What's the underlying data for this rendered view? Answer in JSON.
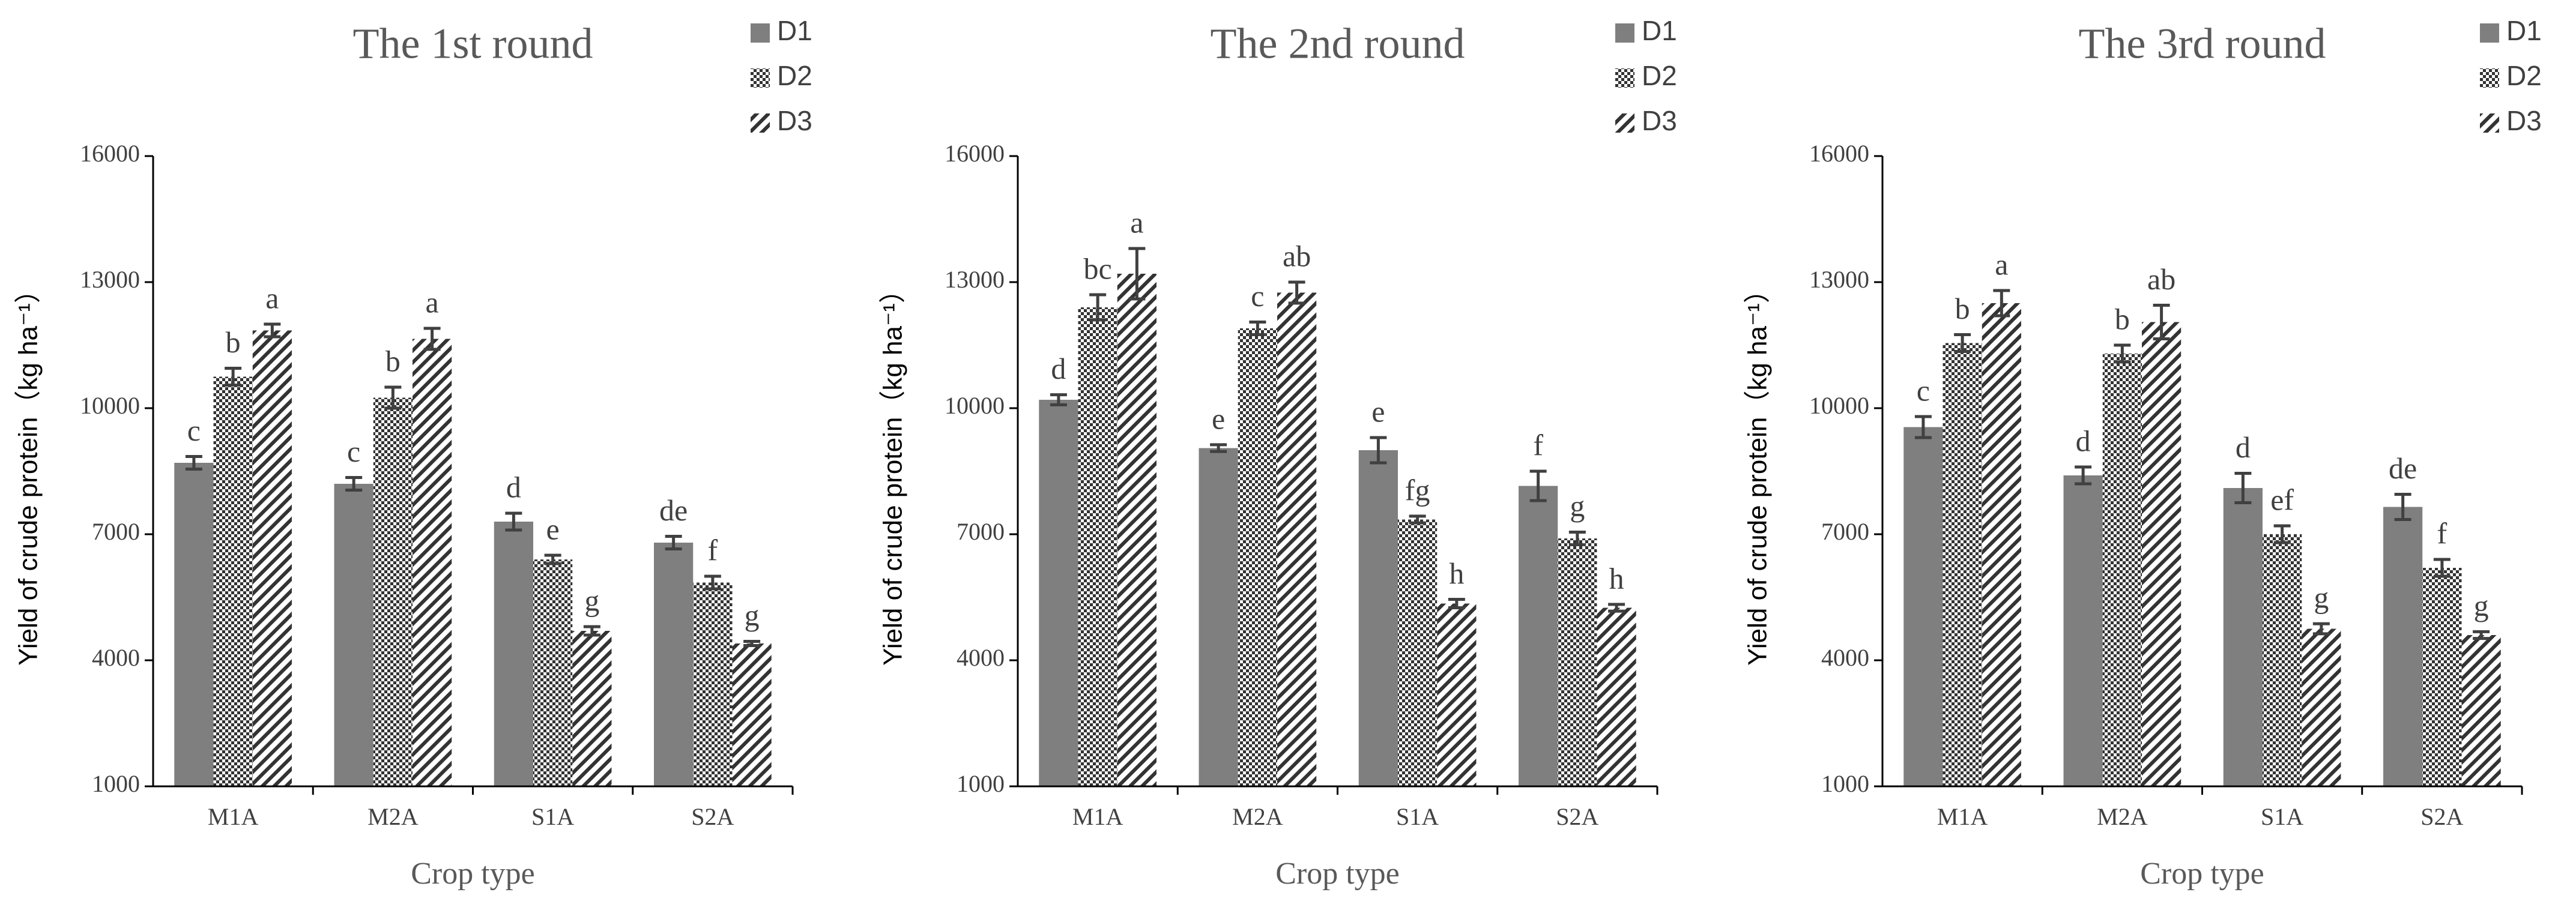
{
  "chart_data": [
    {
      "type": "bar",
      "title": "The 1st round",
      "xlabel": "Crop type",
      "ylabel": "Yield of crude protein（kg ha⁻¹）",
      "categories": [
        "M1A",
        "M2A",
        "S1A",
        "S2A"
      ],
      "ylim": [
        1000,
        16000
      ],
      "yticks": [
        1000,
        4000,
        7000,
        10000,
        13000,
        16000
      ],
      "series": [
        {
          "name": "D1",
          "color": "#7f7f7f",
          "pattern": "solid",
          "values": [
            8700,
            8200,
            7300,
            6800
          ],
          "errors": [
            150,
            150,
            200,
            150
          ],
          "annotations": [
            "c",
            "c",
            "d",
            "de"
          ]
        },
        {
          "name": "D2",
          "color": "#333333",
          "pattern": "checker",
          "values": [
            10750,
            10250,
            6400,
            5850
          ],
          "errors": [
            200,
            250,
            100,
            150
          ],
          "annotations": [
            "b",
            "b",
            "e",
            "f"
          ]
        },
        {
          "name": "D3",
          "color": "#333333",
          "pattern": "diagonal",
          "values": [
            11850,
            11650,
            4700,
            4400
          ],
          "errors": [
            150,
            250,
            100,
            50
          ],
          "annotations": [
            "a",
            "a",
            "g",
            "g"
          ]
        }
      ]
    },
    {
      "type": "bar",
      "title": "The 2nd round",
      "xlabel": "Crop type",
      "ylabel": "Yield of crude protein（kg ha⁻¹）",
      "categories": [
        "M1A",
        "M2A",
        "S1A",
        "S2A"
      ],
      "ylim": [
        1000,
        16000
      ],
      "yticks": [
        1000,
        4000,
        7000,
        10000,
        13000,
        16000
      ],
      "series": [
        {
          "name": "D1",
          "color": "#7f7f7f",
          "pattern": "solid",
          "values": [
            10200,
            9050,
            9000,
            8150
          ],
          "errors": [
            120,
            80,
            300,
            350
          ],
          "annotations": [
            "d",
            "e",
            "e",
            "f"
          ]
        },
        {
          "name": "D2",
          "color": "#333333",
          "pattern": "checker",
          "values": [
            12400,
            11900,
            7350,
            6900
          ],
          "errors": [
            300,
            150,
            80,
            150
          ],
          "annotations": [
            "bc",
            "c",
            "fg",
            "g"
          ]
        },
        {
          "name": "D3",
          "color": "#333333",
          "pattern": "diagonal",
          "values": [
            13200,
            12750,
            5350,
            5250
          ],
          "errors": [
            600,
            250,
            100,
            80
          ],
          "annotations": [
            "a",
            "ab",
            "h",
            "h"
          ]
        }
      ]
    },
    {
      "type": "bar",
      "title": "The 3rd round",
      "xlabel": "Crop type",
      "ylabel": "Yield of crude protein（kg ha⁻¹）",
      "categories": [
        "M1A",
        "M2A",
        "S1A",
        "S2A"
      ],
      "ylim": [
        1000,
        16000
      ],
      "yticks": [
        1000,
        4000,
        7000,
        10000,
        13000,
        16000
      ],
      "series": [
        {
          "name": "D1",
          "color": "#7f7f7f",
          "pattern": "solid",
          "values": [
            9550,
            8400,
            8100,
            7650
          ],
          "errors": [
            250,
            200,
            350,
            300
          ],
          "annotations": [
            "c",
            "d",
            "d",
            "de"
          ]
        },
        {
          "name": "D2",
          "color": "#333333",
          "pattern": "checker",
          "values": [
            11550,
            11300,
            7000,
            6200
          ],
          "errors": [
            200,
            200,
            200,
            200
          ],
          "annotations": [
            "b",
            "b",
            "ef",
            "f"
          ]
        },
        {
          "name": "D3",
          "color": "#333333",
          "pattern": "diagonal",
          "values": [
            12500,
            12050,
            4750,
            4600
          ],
          "errors": [
            300,
            400,
            120,
            80
          ],
          "annotations": [
            "a",
            "ab",
            "g",
            "g"
          ]
        }
      ]
    }
  ]
}
